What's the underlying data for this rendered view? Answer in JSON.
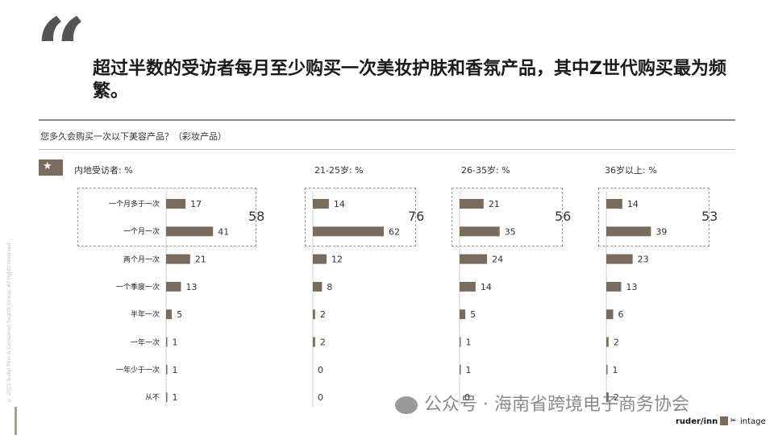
{
  "quote_mark": "“",
  "headline": "超过半数的受访者每月至少购买一次美妆护肤和香氛产品，其中Z世代购买最为频繁。",
  "question": "您多久会购买一次以下美容产品？（彩妆产品）",
  "copyright": "© 2023 Ruder Finn & Consumer Search Group. All rights reserved.",
  "watermark": "公众号 · 海南省跨境电子商务协会",
  "logos": {
    "ruder": "ruder/inn",
    "intage": "intage"
  },
  "colors": {
    "bar": "#7a6c5d",
    "accent": "#a89e90"
  },
  "chart_data": {
    "type": "bar",
    "orientation": "horizontal",
    "categories": [
      "一个月多于一次",
      "一个月一次",
      "两个月一次",
      "一个季度一次",
      "半年一次",
      "一年一次",
      "一年少于一次",
      "从不"
    ],
    "series": [
      {
        "name": "内地受访者: %",
        "values": [
          17,
          41,
          21,
          13,
          5,
          1,
          1,
          1
        ],
        "group_total": "58"
      },
      {
        "name": "21-25岁: %",
        "values": [
          14,
          62,
          12,
          8,
          2,
          2,
          0,
          0
        ],
        "group_total": "76"
      },
      {
        "name": "26-35岁: %",
        "values": [
          21,
          35,
          24,
          14,
          5,
          1,
          1,
          0
        ],
        "group_total": "56"
      },
      {
        "name": "36岁以上: %",
        "values": [
          14,
          39,
          23,
          13,
          6,
          2,
          1,
          2
        ],
        "group_total": "53"
      }
    ],
    "grouped_categories": [
      "一个月多于一次",
      "一个月一次"
    ]
  }
}
